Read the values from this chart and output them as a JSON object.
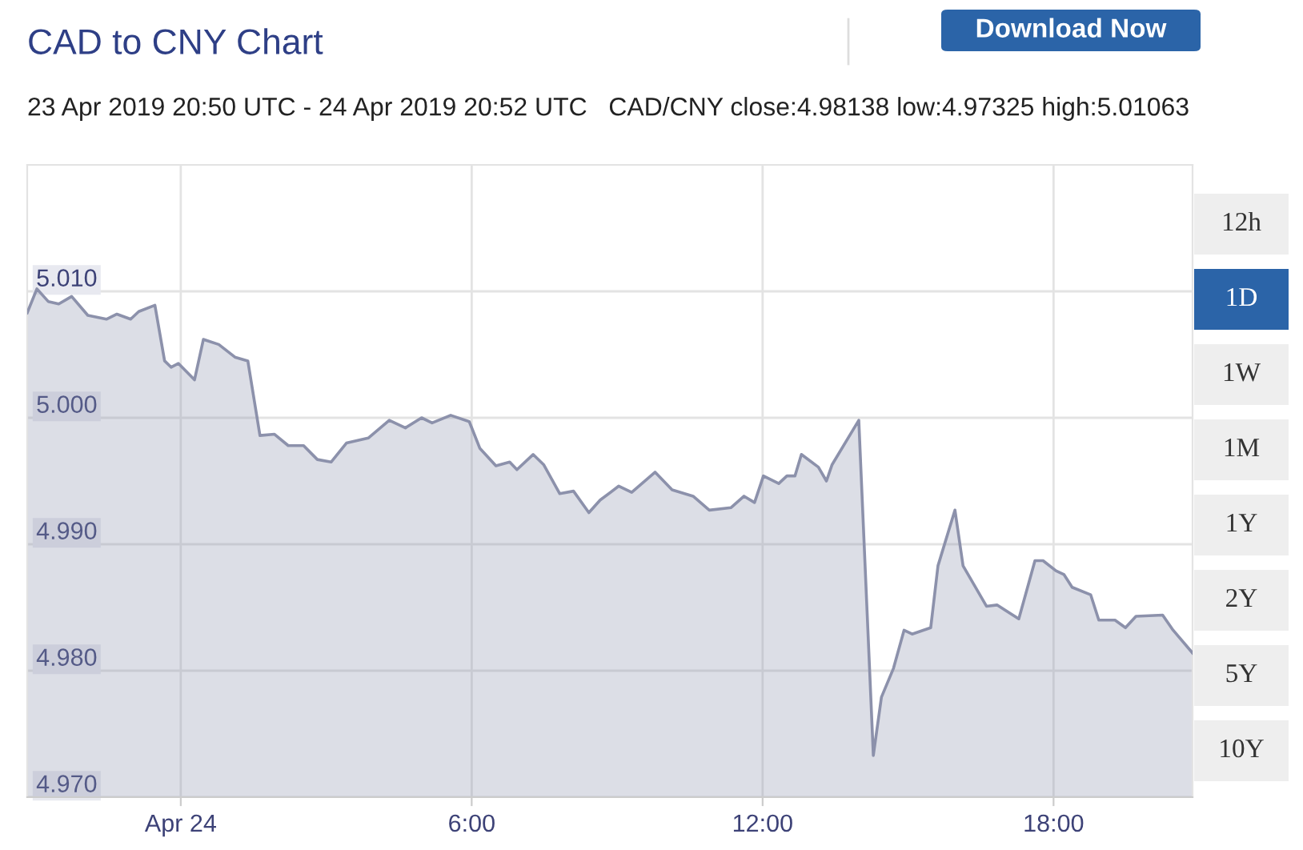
{
  "chart_data": [
    {
      "type": "area",
      "title": "CAD to CNY Chart",
      "subtitle": "23 Apr 2019 20:50 UTC - 24 Apr 2019 20:52 UTC   CAD/CNY close:4.98138 low:4.97325 high:5.01063",
      "x": [
        "2019-04-23T20:50",
        "2019-04-23T21:02",
        "2019-04-23T21:16",
        "2019-04-23T21:29",
        "2019-04-23T21:45",
        "2019-04-23T22:05",
        "2019-04-23T22:28",
        "2019-04-23T22:41",
        "2019-04-23T22:58",
        "2019-04-23T23:08",
        "2019-04-23T23:28",
        "2019-04-23T23:40",
        "2019-04-23T23:48",
        "2019-04-23T23:57",
        "2019-04-24T00:17",
        "2019-04-24T00:28",
        "2019-04-24T00:47",
        "2019-04-24T01:07",
        "2019-04-24T01:23",
        "2019-04-24T01:38",
        "2019-04-24T01:56",
        "2019-04-24T02:13",
        "2019-04-24T02:32",
        "2019-04-24T02:49",
        "2019-04-24T03:06",
        "2019-04-24T03:25",
        "2019-04-24T03:52",
        "2019-04-24T04:18",
        "2019-04-24T04:38",
        "2019-04-24T04:58",
        "2019-04-24T05:11",
        "2019-04-24T05:34",
        "2019-04-24T05:57",
        "2019-04-24T06:10",
        "2019-04-24T06:30",
        "2019-04-24T06:47",
        "2019-04-24T06:56",
        "2019-04-24T07:16",
        "2019-04-24T07:29",
        "2019-04-24T07:49",
        "2019-04-24T08:06",
        "2019-04-24T08:25",
        "2019-04-24T08:39",
        "2019-04-24T09:02",
        "2019-04-24T09:18",
        "2019-04-24T09:47",
        "2019-04-24T10:08",
        "2019-04-24T10:34",
        "2019-04-24T10:54",
        "2019-04-24T11:21",
        "2019-04-24T11:37",
        "2019-04-24T11:50",
        "2019-04-24T12:01",
        "2019-04-24T12:20",
        "2019-04-24T12:30",
        "2019-04-24T12:40",
        "2019-04-24T12:48",
        "2019-04-24T13:09",
        "2019-04-24T13:19",
        "2019-04-24T13:26",
        "2019-04-24T13:59",
        "2019-04-24T14:17",
        "2019-04-24T14:27",
        "2019-04-24T14:42",
        "2019-04-24T14:55",
        "2019-04-24T15:05",
        "2019-04-24T15:28",
        "2019-04-24T15:37",
        "2019-04-24T15:58",
        "2019-04-24T16:08",
        "2019-04-24T16:37",
        "2019-04-24T16:50",
        "2019-04-24T17:17",
        "2019-04-24T17:37",
        "2019-04-24T17:47",
        "2019-04-24T18:03",
        "2019-04-24T18:13",
        "2019-04-24T18:23",
        "2019-04-24T18:46",
        "2019-04-24T18:56",
        "2019-04-24T19:16",
        "2019-04-24T19:29",
        "2019-04-24T19:42",
        "2019-04-24T20:15",
        "2019-04-24T20:28",
        "2019-04-24T20:52"
      ],
      "series": [
        {
          "color": "#8c91ab",
          "values": [
            5.0083,
            5.0102,
            5.0092,
            5.009,
            5.0096,
            5.0081,
            5.0078,
            5.0082,
            5.0078,
            5.0084,
            5.0089,
            5.0045,
            5.004,
            5.0043,
            5.003,
            5.0062,
            5.0058,
            5.0048,
            5.0045,
            4.9986,
            4.9987,
            4.9978,
            4.9978,
            4.9967,
            4.9965,
            4.998,
            4.9984,
            4.9998,
            4.9992,
            5.0,
            4.9996,
            5.0002,
            4.9997,
            4.9976,
            4.9962,
            4.9965,
            4.9959,
            4.9971,
            4.9963,
            4.994,
            4.9942,
            4.9925,
            4.9935,
            4.9946,
            4.9941,
            4.9957,
            4.9943,
            4.9938,
            4.9927,
            4.9929,
            4.9938,
            4.9933,
            4.9954,
            4.9948,
            4.9954,
            4.9954,
            4.9971,
            4.9961,
            4.995,
            4.9963,
            4.9998,
            4.9733,
            4.9779,
            4.9802,
            4.9832,
            4.9829,
            4.9834,
            4.9883,
            4.9927,
            4.9883,
            4.9851,
            4.9852,
            4.9841,
            4.9887,
            4.9887,
            4.9879,
            4.9876,
            4.9866,
            4.986,
            4.984,
            4.984,
            4.9834,
            4.9843,
            4.9844,
            4.9832,
            4.9814
          ]
        }
      ],
      "xlim": [
        "2019-04-23T20:50",
        "2019-04-24T20:52"
      ],
      "xticks": [
        {
          "value": "2019-04-24T00:00",
          "label": "Apr 24"
        },
        {
          "value": "2019-04-24T06:00",
          "label": "6:00"
        },
        {
          "value": "2019-04-24T12:00",
          "label": "12:00"
        },
        {
          "value": "2019-04-24T18:00",
          "label": "18:00"
        }
      ],
      "ylim": [
        4.97,
        5.02
      ],
      "yticks": [
        {
          "value": 4.97,
          "label": "4.970"
        },
        {
          "value": 4.98,
          "label": "4.980"
        },
        {
          "value": 4.99,
          "label": "4.990"
        },
        {
          "value": 5.0,
          "label": "5.000"
        },
        {
          "value": 5.01,
          "label": "5.010"
        }
      ],
      "grid": true,
      "legend": false
    },
    {
      "type": "other",
      "categories": [
        "12h",
        "1D",
        "1W",
        "1M",
        "1Y",
        "2Y",
        "5Y",
        "10Y"
      ],
      "colors": [
        "#eeeeee",
        "#2b64a8",
        "#eeeeee",
        "#eeeeee",
        "#eeeeee",
        "#eeeeee",
        "#eeeeee",
        "#eeeeee"
      ],
      "annotations": [
        "Download Now"
      ]
    }
  ]
}
